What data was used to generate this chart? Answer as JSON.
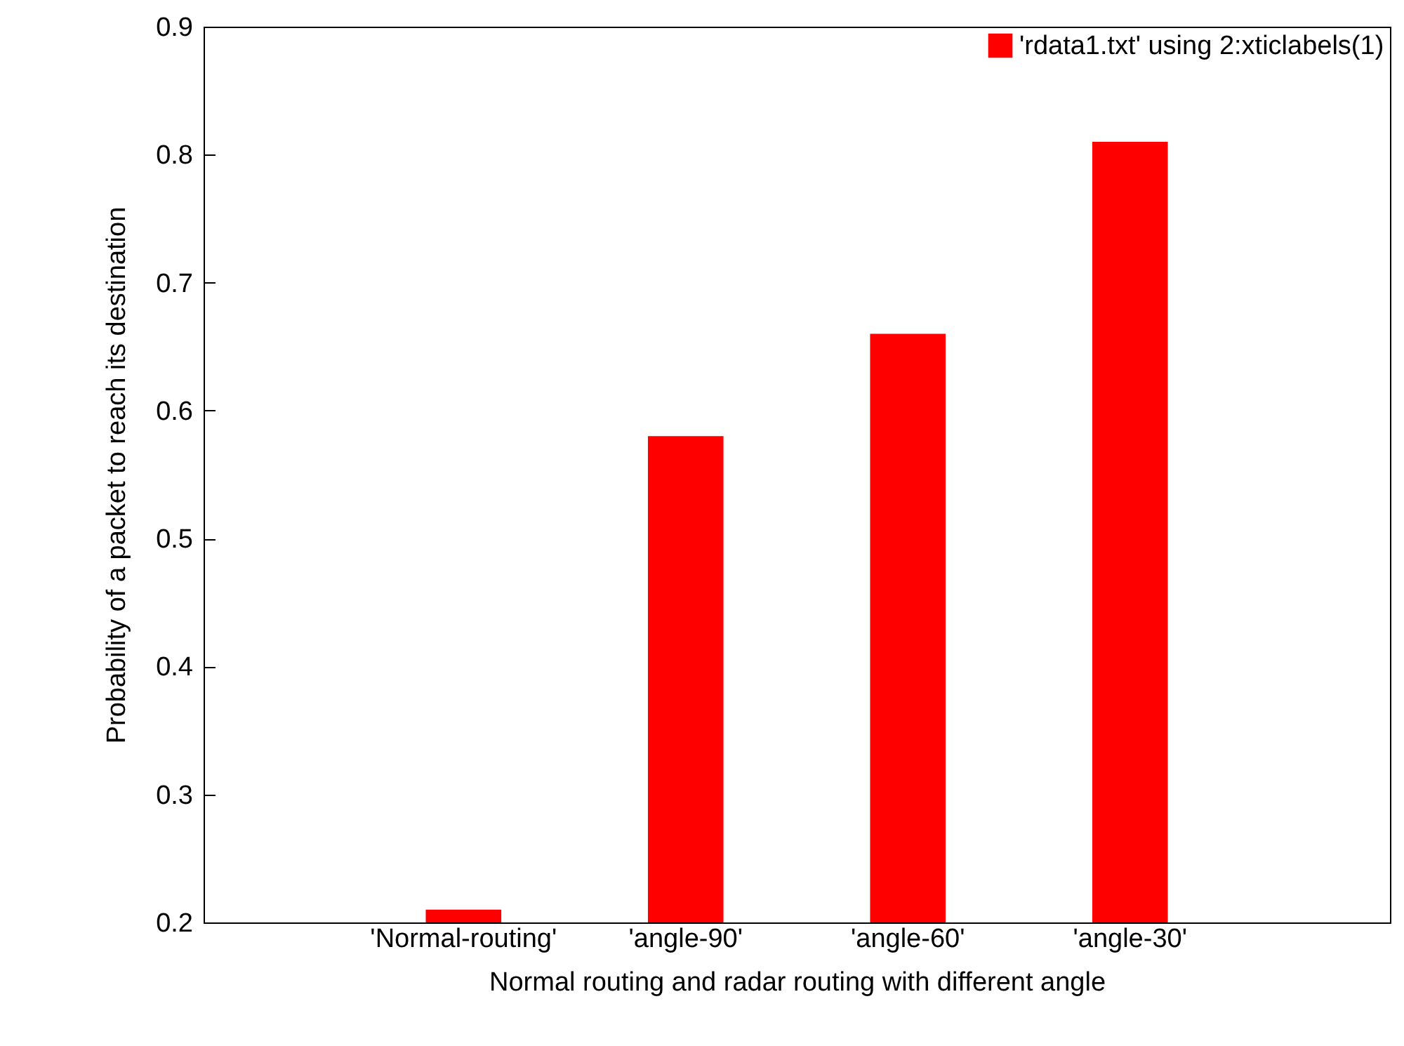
{
  "chart_data": {
    "type": "bar",
    "xlabel": "Normal routing and radar routing with different angle",
    "ylabel": "Probability of a packet to reach its destination",
    "categories": [
      "'Normal-routing'",
      "'angle-90'",
      "'angle-60'",
      "'angle-30'"
    ],
    "series": [
      {
        "name": "'rdata1.txt' using 2:xticlabels(1)",
        "color": "#ff0000",
        "values": [
          0.21,
          0.58,
          0.66,
          0.81
        ]
      }
    ],
    "ylim": [
      0.2,
      0.9
    ],
    "yticks": [
      0.2,
      0.3,
      0.4,
      0.5,
      0.6,
      0.7,
      0.8,
      0.9
    ],
    "grid": false,
    "legend": "top right"
  }
}
